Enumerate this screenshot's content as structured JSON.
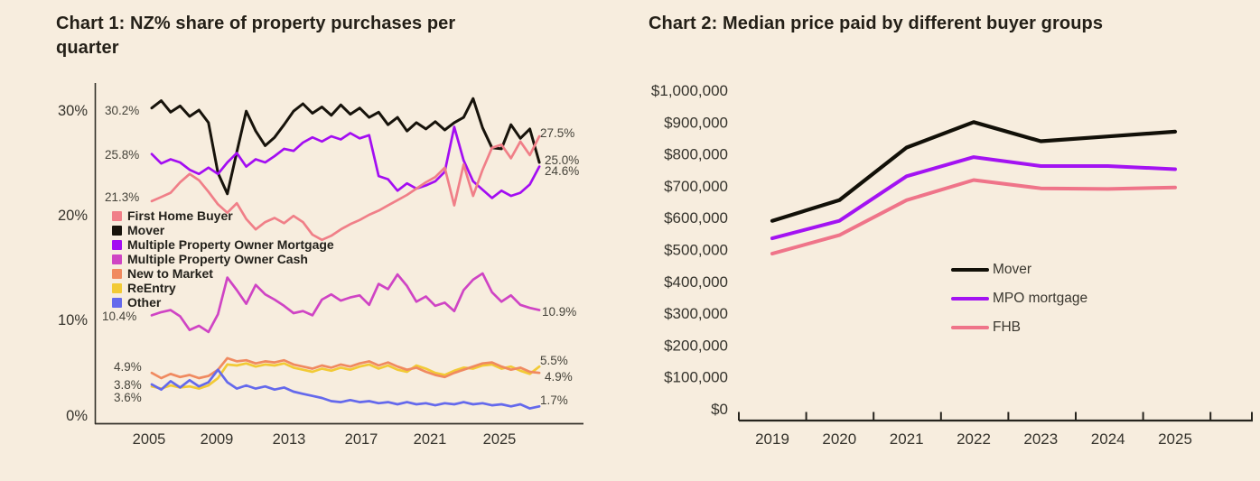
{
  "page": {
    "background_color": "#f7edde",
    "text_color": "#231f17"
  },
  "chart_data": [
    {
      "type": "line",
      "title": "Chart 1: NZ% share of property purchases per quarter",
      "xlabel": "",
      "ylabel": "",
      "ylim": [
        0,
        32
      ],
      "grid": false,
      "legend_position": "inside-left",
      "y_tick_labels": [
        "30%",
        "20%",
        "10%",
        "0%"
      ],
      "x_tick_labels": [
        "2005",
        "2009",
        "2013",
        "2017",
        "2021",
        "2025"
      ],
      "x": [
        2005,
        2005.5,
        2006,
        2006.5,
        2007,
        2007.5,
        2008,
        2008.5,
        2009,
        2009.5,
        2010,
        2010.5,
        2011,
        2011.5,
        2012,
        2012.5,
        2013,
        2013.5,
        2014,
        2014.5,
        2015,
        2015.5,
        2016,
        2016.5,
        2017,
        2017.5,
        2018,
        2018.5,
        2019,
        2019.5,
        2020,
        2020.5,
        2021,
        2021.5,
        2022,
        2022.5,
        2023,
        2023.5,
        2024,
        2024.5,
        2025,
        2025.5
      ],
      "series": [
        {
          "name": "First Home Buyer",
          "color": "#f07f88",
          "values": [
            21.3,
            21.7,
            22.1,
            23.1,
            23.9,
            23.3,
            22.2,
            21.0,
            20.2,
            21.1,
            19.6,
            18.6,
            19.3,
            19.7,
            19.2,
            19.9,
            19.3,
            18.1,
            17.6,
            18.0,
            18.6,
            19.1,
            19.5,
            20.0,
            20.4,
            20.9,
            21.4,
            21.9,
            22.5,
            23.1,
            23.6,
            24.5,
            20.9,
            24.8,
            21.8,
            24.3,
            26.4,
            26.7,
            25.4,
            27.0,
            25.7,
            27.5
          ]
        },
        {
          "name": "Mover",
          "color": "#17130b",
          "values": [
            30.2,
            30.9,
            29.8,
            30.4,
            29.4,
            30.0,
            28.8,
            24.0,
            22.0,
            26.0,
            29.9,
            28.0,
            26.6,
            27.4,
            28.6,
            29.9,
            30.6,
            29.7,
            30.3,
            29.5,
            30.5,
            29.6,
            30.2,
            29.3,
            29.8,
            28.6,
            29.3,
            28.0,
            28.8,
            28.2,
            28.9,
            28.1,
            28.8,
            29.3,
            31.1,
            28.3,
            26.4,
            26.3,
            28.6,
            27.3,
            28.2,
            25.0
          ]
        },
        {
          "name": "Multiple Property Owner Mortgage",
          "color": "#a30df2",
          "values": [
            25.8,
            24.9,
            25.3,
            25.0,
            24.3,
            23.9,
            24.5,
            23.9,
            25.0,
            25.9,
            24.6,
            25.3,
            25.0,
            25.6,
            26.3,
            26.1,
            26.9,
            27.4,
            27.0,
            27.5,
            27.2,
            27.8,
            27.3,
            27.6,
            23.7,
            23.4,
            22.3,
            23.0,
            22.5,
            22.8,
            23.2,
            24.1,
            28.4,
            25.2,
            23.2,
            22.4,
            21.6,
            22.3,
            21.8,
            22.1,
            22.9,
            24.6
          ]
        },
        {
          "name": "Multiple Property Owner Cash",
          "color": "#cf44c4",
          "values": [
            10.4,
            10.7,
            10.9,
            10.3,
            9.0,
            9.4,
            8.8,
            10.5,
            14.0,
            12.8,
            11.5,
            13.3,
            12.4,
            11.9,
            11.3,
            10.6,
            10.8,
            10.4,
            11.9,
            12.4,
            11.8,
            12.1,
            12.3,
            11.4,
            13.4,
            12.9,
            14.3,
            13.2,
            11.7,
            12.2,
            11.3,
            11.6,
            10.8,
            12.8,
            13.8,
            14.4,
            12.6,
            11.7,
            12.3,
            11.4,
            11.1,
            10.9
          ]
        },
        {
          "name": "New to Market",
          "color": "#f08a60",
          "values": [
            4.9,
            4.4,
            4.8,
            4.5,
            4.7,
            4.4,
            4.6,
            5.2,
            6.3,
            6.0,
            6.1,
            5.8,
            6.0,
            5.9,
            6.1,
            5.7,
            5.5,
            5.3,
            5.6,
            5.4,
            5.7,
            5.5,
            5.8,
            6.0,
            5.6,
            5.9,
            5.5,
            5.2,
            5.4,
            5.0,
            4.7,
            4.5,
            4.9,
            5.2,
            5.5,
            5.8,
            5.9,
            5.5,
            5.2,
            5.4,
            5.0,
            4.9
          ]
        },
        {
          "name": "ReEntry",
          "color": "#f2ca35",
          "values": [
            3.6,
            3.4,
            3.7,
            3.5,
            3.6,
            3.4,
            3.7,
            4.4,
            5.7,
            5.6,
            5.8,
            5.5,
            5.7,
            5.6,
            5.8,
            5.4,
            5.2,
            5.0,
            5.3,
            5.1,
            5.4,
            5.2,
            5.5,
            5.7,
            5.3,
            5.6,
            5.2,
            5.0,
            5.6,
            5.3,
            4.9,
            4.7,
            5.1,
            5.4,
            5.3,
            5.6,
            5.7,
            5.3,
            5.5,
            5.1,
            4.8,
            5.5
          ]
        },
        {
          "name": "Other",
          "color": "#6469ec",
          "values": [
            3.8,
            3.3,
            4.1,
            3.5,
            4.2,
            3.6,
            4.0,
            5.2,
            4.0,
            3.4,
            3.7,
            3.4,
            3.6,
            3.3,
            3.5,
            3.1,
            2.9,
            2.7,
            2.5,
            2.2,
            2.1,
            2.3,
            2.1,
            2.2,
            2.0,
            2.1,
            1.9,
            2.1,
            1.9,
            2.0,
            1.8,
            2.0,
            1.9,
            2.1,
            1.9,
            2.0,
            1.8,
            1.9,
            1.7,
            1.9,
            1.5,
            1.7
          ]
        }
      ],
      "annotations_left": [
        "30.2%",
        "25.8%",
        "21.3%",
        "10.4%",
        "4.9%",
        "3.8%",
        "3.6%"
      ],
      "annotations_right": [
        "27.5%",
        "25.0%",
        "24.6%",
        "10.9%",
        "5.5%",
        "4.9%",
        "1.7%"
      ]
    },
    {
      "type": "line",
      "title": "Chart 2: Median price paid by different buyer groups",
      "xlabel": "",
      "ylabel": "",
      "ylim": [
        0,
        1000000
      ],
      "grid": false,
      "legend_position": "inside-bottom-center",
      "y_tick_labels": [
        "$1,000,000",
        "$900,000",
        "$800,000",
        "$700,000",
        "$600,000",
        "$500,000",
        "$400,000",
        "$300,000",
        "$200,000",
        "$100,000",
        "$0"
      ],
      "x_tick_labels": [
        "2019",
        "2020",
        "2021",
        "2022",
        "2023",
        "2024",
        "2025"
      ],
      "x": [
        2019,
        2020,
        2021,
        2022,
        2023,
        2024,
        2025
      ],
      "series": [
        {
          "name": "Mover",
          "color": "#121008",
          "values": [
            590000,
            655000,
            820000,
            900000,
            840000,
            855000,
            870000
          ]
        },
        {
          "name": "MPO mortgage",
          "color": "#a313f2",
          "values": [
            535000,
            590000,
            730000,
            790000,
            762000,
            762000,
            752000
          ]
        },
        {
          "name": "FHB",
          "color": "#ef7489",
          "values": [
            487000,
            545000,
            655000,
            718000,
            692000,
            690000,
            695000
          ]
        }
      ]
    }
  ]
}
